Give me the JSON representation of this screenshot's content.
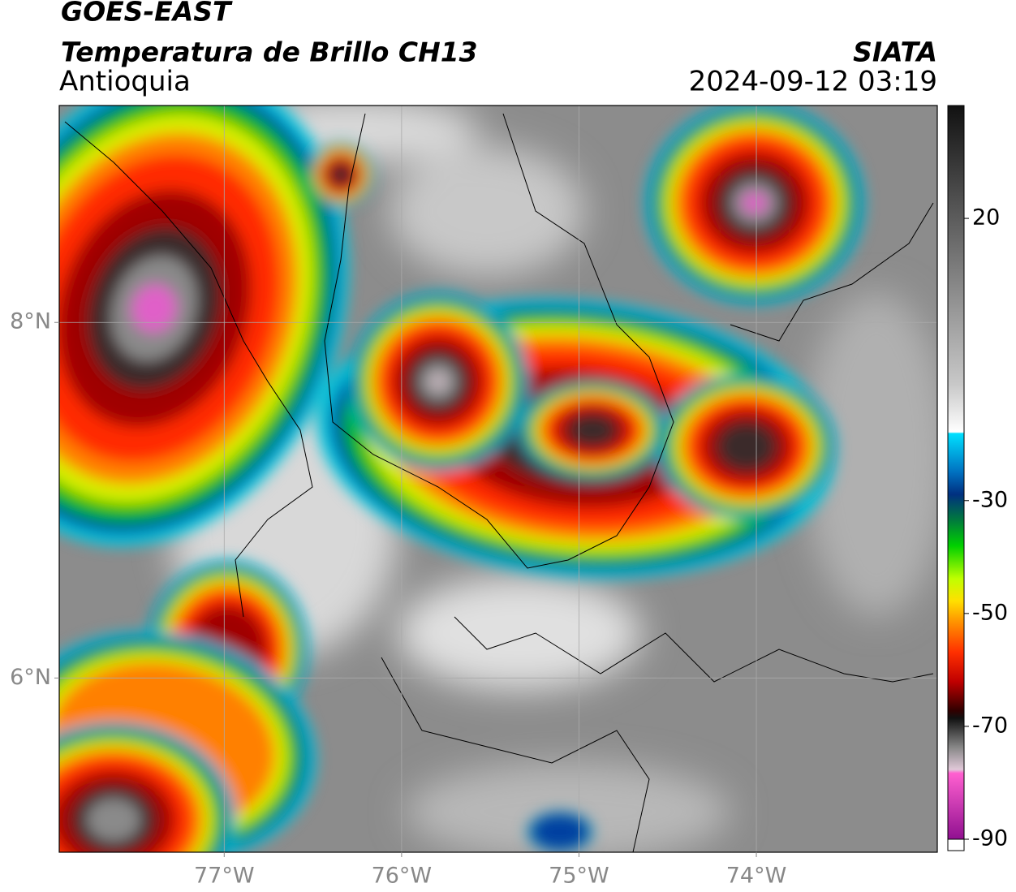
{
  "header": {
    "title": "GOES-EAST",
    "subtitle": "Temperatura de Brillo CH13",
    "region": "Antioquia",
    "source": "SIATA",
    "datetime": "2024-09-12 03:19"
  },
  "map": {
    "xlim": [
      -77.93,
      -72.98
    ],
    "ylim": [
      5.02,
      9.22
    ],
    "xticks": [
      {
        "value": -77,
        "label": "77°W"
      },
      {
        "value": -76,
        "label": "76°W"
      },
      {
        "value": -75,
        "label": "75°W"
      },
      {
        "value": -74,
        "label": "74°W"
      }
    ],
    "yticks": [
      {
        "value": 8,
        "label": "8°N"
      },
      {
        "value": 6,
        "label": "6°N"
      }
    ],
    "grid": true
  },
  "colorbar": {
    "lim": [
      -90,
      40
    ],
    "ticks": [
      20,
      -30,
      -50,
      -70,
      -90
    ]
  }
}
